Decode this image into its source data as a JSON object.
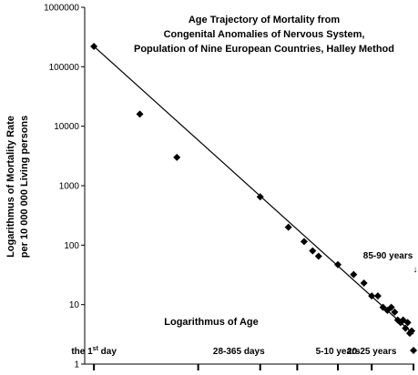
{
  "chart_data": {
    "type": "scatter",
    "title": [
      "Age Trajectory of Mortality from",
      "Congenital Anomalies of Nervous System,",
      "Population of Nine European Countries, Halley Method"
    ],
    "ylabel": [
      "Logarithmus of Mortality Rate",
      "per 10 000 000 Living persons"
    ],
    "xlabel": "Logarithmus of Age",
    "y_scale": "log",
    "ylim": [
      1,
      1000000
    ],
    "y_ticks": [
      {
        "value": 1000000,
        "label": "1000000"
      },
      {
        "value": 100000,
        "label": "100000"
      },
      {
        "value": 10000,
        "label": "10000"
      },
      {
        "value": 1000,
        "label": "1000"
      },
      {
        "value": 100,
        "label": "100"
      },
      {
        "value": 10,
        "label": "10"
      },
      {
        "value": 1,
        "label": "1"
      }
    ],
    "x_scale": "log",
    "xlim": [
      0.002,
      90
    ],
    "x_tick_values": [
      0.0027,
      0.08,
      0.6,
      2.0,
      7.5,
      22.5,
      87.5
    ],
    "x_annotations": [
      {
        "text": "the 1",
        "sup": "st",
        "after": " day",
        "x": 0.0027
      },
      {
        "text": "28-365 days",
        "x": 0.3
      },
      {
        "text": "5-10 years",
        "x": 7.5
      },
      {
        "text": "20-25 years",
        "x": 22.5
      }
    ],
    "arrow_annotation": {
      "text": "85-90 years",
      "arrow": "↓",
      "x": 87.5
    },
    "series": [
      {
        "color": "#000000",
        "marker": "diamond",
        "points": [
          {
            "x": 0.0027,
            "y": 220000
          },
          {
            "x": 0.012,
            "y": 16000
          },
          {
            "x": 0.04,
            "y": 3000
          },
          {
            "x": 0.6,
            "y": 650
          },
          {
            "x": 1.5,
            "y": 200
          },
          {
            "x": 2.5,
            "y": 115
          },
          {
            "x": 3.3,
            "y": 80
          },
          {
            "x": 4.0,
            "y": 65
          },
          {
            "x": 7.5,
            "y": 47
          },
          {
            "x": 12.5,
            "y": 32
          },
          {
            "x": 17.5,
            "y": 23
          },
          {
            "x": 22.5,
            "y": 14
          },
          {
            "x": 27.5,
            "y": 14
          },
          {
            "x": 32.5,
            "y": 9
          },
          {
            "x": 37.5,
            "y": 8
          },
          {
            "x": 42.5,
            "y": 9
          },
          {
            "x": 47.5,
            "y": 7.5
          },
          {
            "x": 52.5,
            "y": 5.5
          },
          {
            "x": 57.5,
            "y": 5
          },
          {
            "x": 62.5,
            "y": 5.5
          },
          {
            "x": 67.5,
            "y": 4
          },
          {
            "x": 72.5,
            "y": 5
          },
          {
            "x": 77.5,
            "y": 3.3
          },
          {
            "x": 82.5,
            "y": 3.6
          },
          {
            "x": 87.5,
            "y": 1.7
          }
        ]
      }
    ],
    "trend_line": {
      "from": {
        "x": 0.0027,
        "y": 220000
      },
      "to": {
        "x": 87.5,
        "y": 3.2
      }
    },
    "grid": false,
    "legend": "none"
  }
}
